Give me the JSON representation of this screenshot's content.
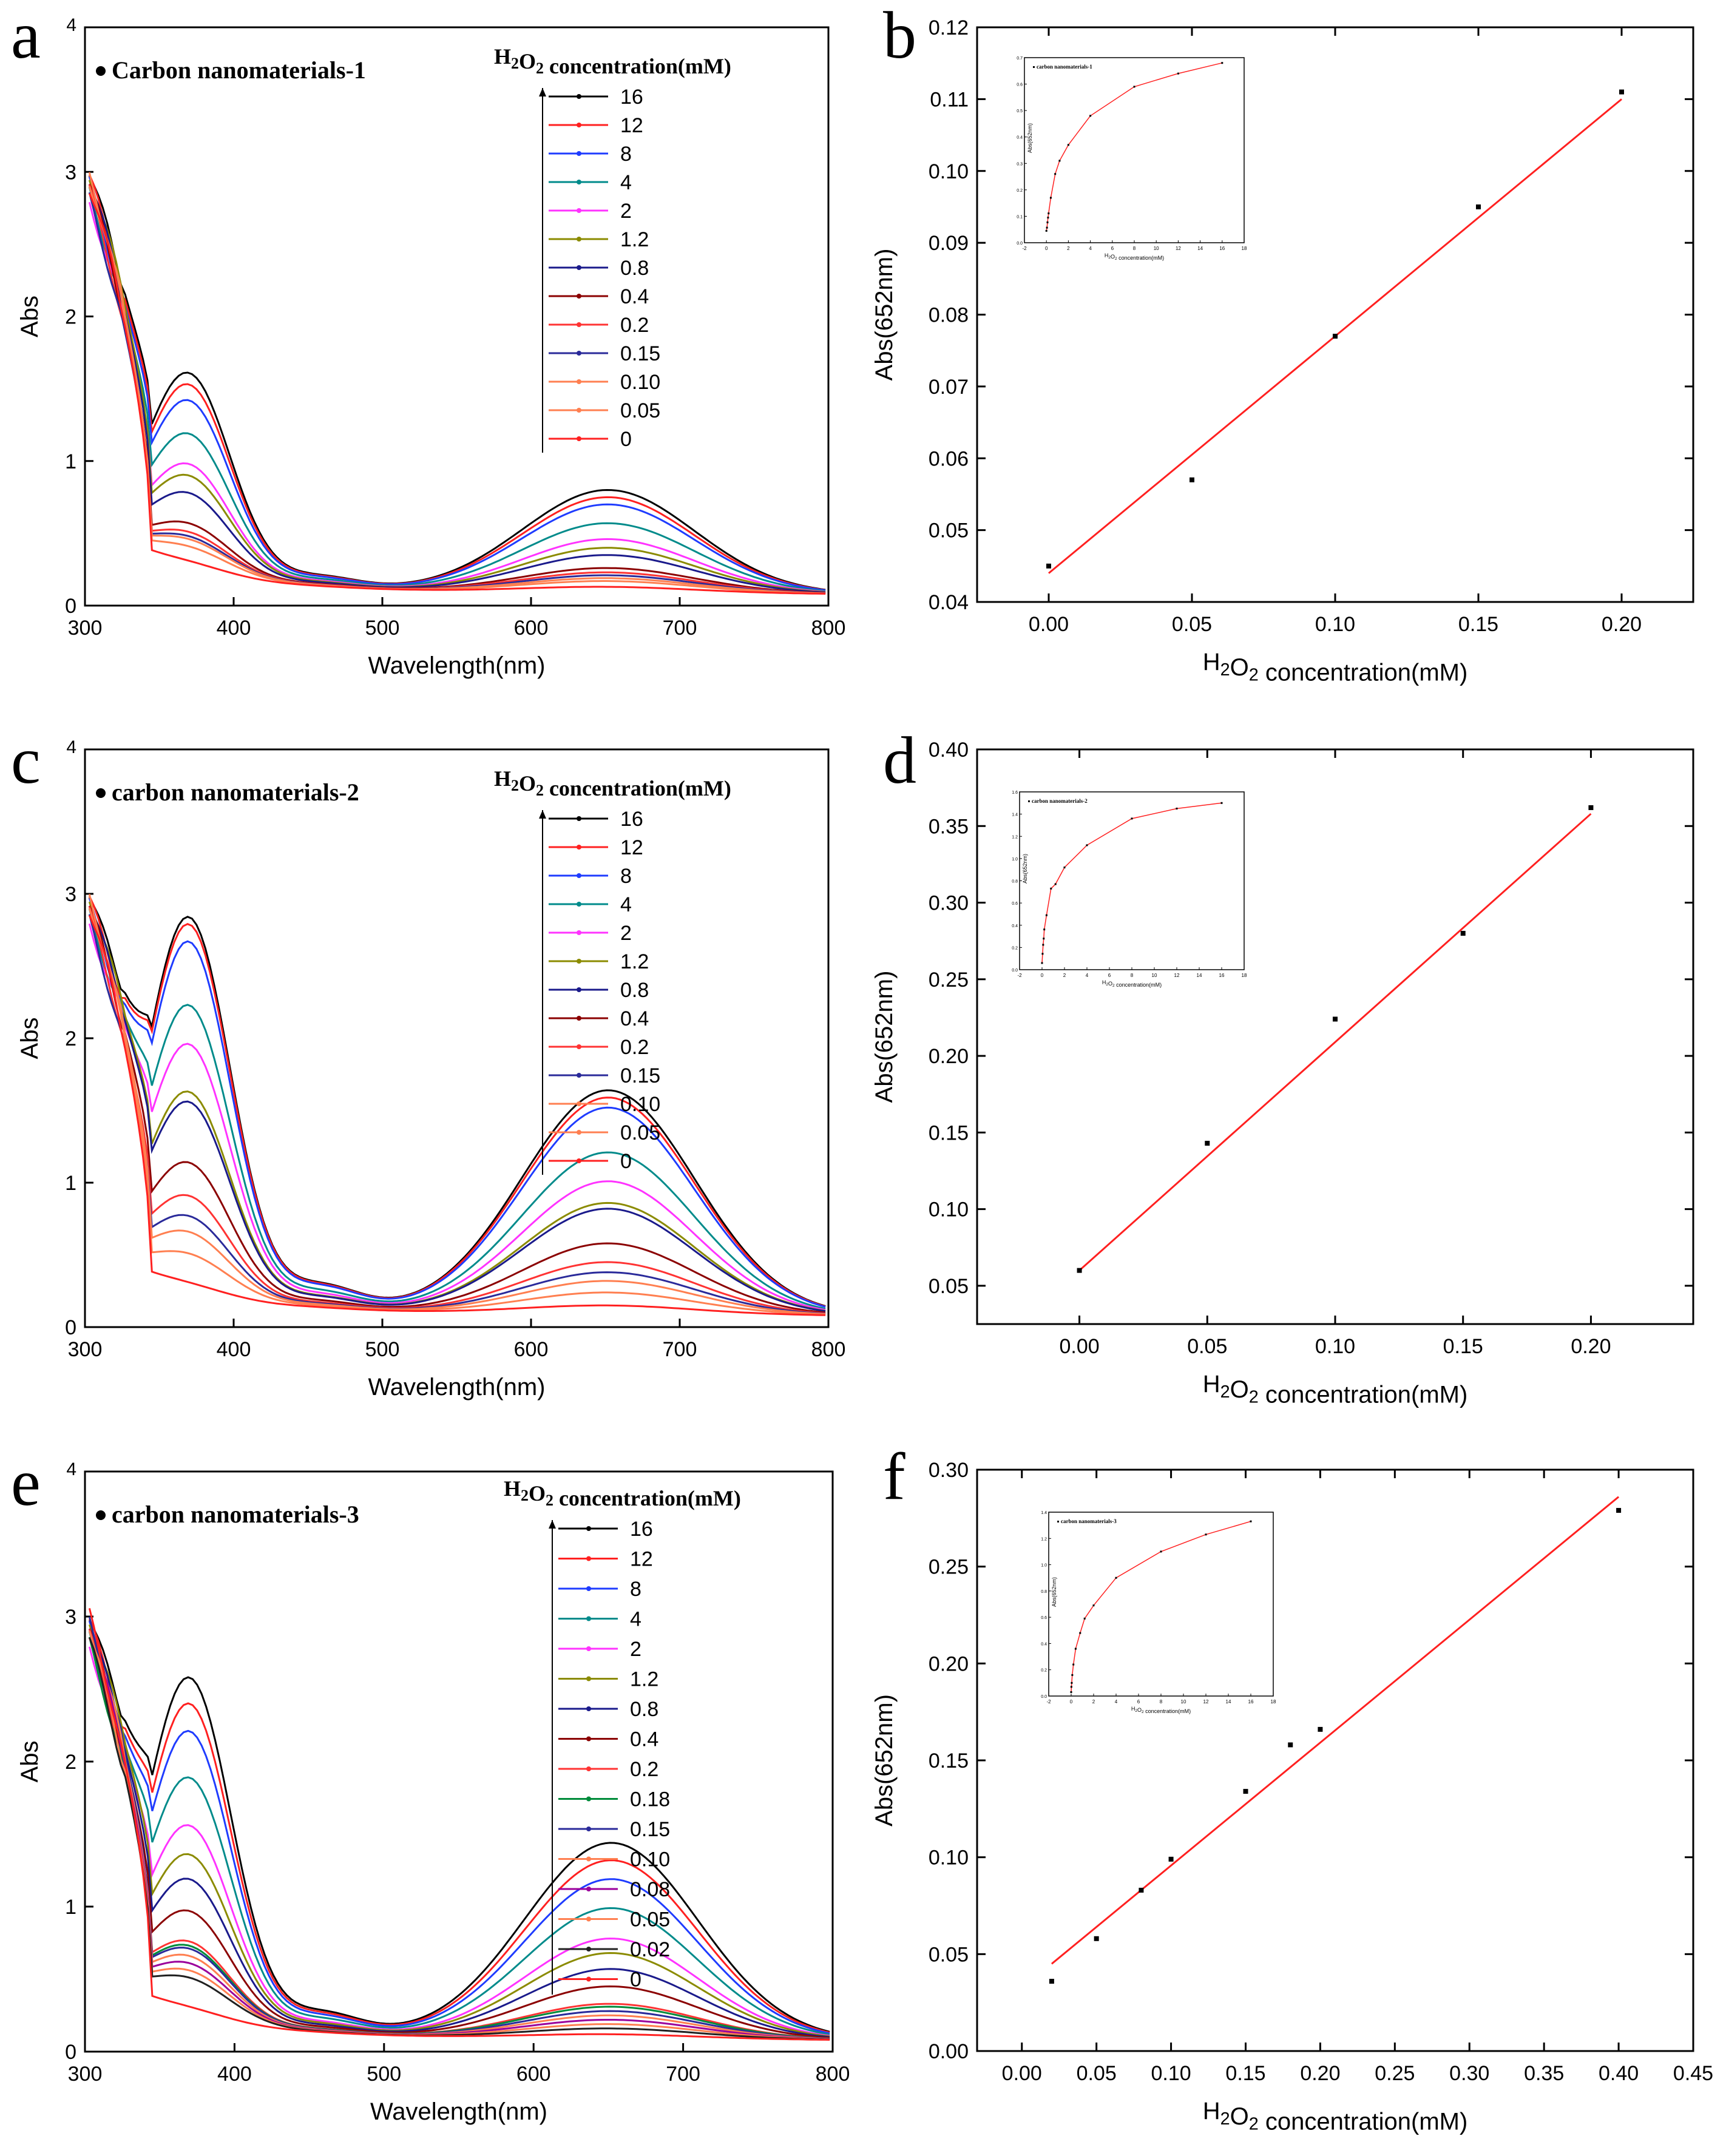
{
  "colors": {
    "16": "#000000",
    "12": "#ff2020",
    "8": "#1f3cff",
    "4": "#008b8b",
    "2": "#ff33ff",
    "1.2": "#8b8b00",
    "0.8": "#1a1a8b",
    "0.4": "#8b0000",
    "0.2": "#ff3333",
    "0.18": "#008b3a",
    "0.15": "#2a2a9a",
    "0.10": "#ff7f50",
    "0.08": "#9b009b",
    "0.05": "#ff7f50",
    "0.02": "#202020",
    "0": "#ff2020",
    "fit": "#ff2020",
    "axis": "#000000"
  },
  "chart_data": [
    {
      "panel": "a",
      "type": "line",
      "title": "Carbon nanomaterials-1",
      "xlabel": "Wavelength(nm)",
      "ylabel": "Abs",
      "xlim": [
        300,
        800
      ],
      "ylim": [
        0,
        4
      ],
      "xticks": [
        "300",
        "400",
        "500",
        "600",
        "700",
        "800"
      ],
      "yticks": [
        "0",
        "1",
        "2",
        "3",
        "4"
      ],
      "legend_title": "H2O2 concentration(mM)",
      "series": [
        {
          "name": "16",
          "peak370": 1.7,
          "peak652": 0.71
        },
        {
          "name": "12",
          "peak370": 1.62,
          "peak652": 0.66
        },
        {
          "name": "8",
          "peak370": 1.51,
          "peak652": 0.61
        },
        {
          "name": "4",
          "peak370": 1.28,
          "peak652": 0.48
        },
        {
          "name": "2",
          "peak370": 1.07,
          "peak652": 0.37
        },
        {
          "name": "1.2",
          "peak370": 0.99,
          "peak652": 0.31
        },
        {
          "name": "0.8",
          "peak370": 0.87,
          "peak652": 0.26
        },
        {
          "name": "0.4",
          "peak370": 0.66,
          "peak652": 0.17
        },
        {
          "name": "0.2",
          "peak370": 0.6,
          "peak652": 0.14
        },
        {
          "name": "0.15",
          "peak370": 0.57,
          "peak652": 0.12
        },
        {
          "name": "0.10",
          "peak370": 0.55,
          "peak652": 0.1
        },
        {
          "name": "0.05",
          "peak370": 0.5,
          "peak652": 0.08
        },
        {
          "name": "0",
          "peak370": 0.4,
          "peak652": 0.04
        }
      ]
    },
    {
      "panel": "b",
      "type": "scatter",
      "xlabel": "H2O2 concentration(mM)",
      "ylabel": "Abs(652nm)",
      "xlim": [
        -0.025,
        0.225
      ],
      "ylim": [
        0.04,
        0.12
      ],
      "xticks": [
        "0.00",
        "0.05",
        "0.10",
        "0.15",
        "0.20"
      ],
      "yticks": [
        "0.04",
        "0.05",
        "0.06",
        "0.07",
        "0.08",
        "0.09",
        "0.10",
        "0.11",
        "0.12"
      ],
      "x": [
        0.0,
        0.05,
        0.1,
        0.15,
        0.2
      ],
      "y": [
        0.045,
        0.057,
        0.077,
        0.095,
        0.111
      ],
      "fit": {
        "x": [
          0.0,
          0.2
        ],
        "y": [
          0.044,
          0.11
        ]
      },
      "inset": {
        "label": "carbon nanomaterials-1",
        "xlabel": "H2O2 concentration(mM)",
        "ylabel": "Abs(652nm)",
        "xlim": [
          -2,
          18
        ],
        "ylim": [
          0,
          0.7
        ],
        "xticks": [
          "-2",
          "0",
          "2",
          "4",
          "6",
          "8",
          "10",
          "12",
          "14",
          "16",
          "18"
        ],
        "yticks": [
          "0.0",
          "0.1",
          "0.2",
          "0.3",
          "0.4",
          "0.5",
          "0.6",
          "0.7"
        ],
        "x": [
          0,
          0.05,
          0.1,
          0.15,
          0.2,
          0.4,
          0.8,
          1.2,
          2,
          4,
          8,
          12,
          16
        ],
        "y": [
          0.045,
          0.057,
          0.077,
          0.095,
          0.111,
          0.17,
          0.26,
          0.31,
          0.37,
          0.48,
          0.59,
          0.64,
          0.68
        ]
      }
    },
    {
      "panel": "c",
      "type": "line",
      "title": "carbon nanomaterials-2",
      "xlabel": "Wavelength(nm)",
      "ylabel": "Abs",
      "xlim": [
        300,
        800
      ],
      "ylim": [
        0,
        4
      ],
      "xticks": [
        "300",
        "400",
        "500",
        "600",
        "700",
        "800"
      ],
      "yticks": [
        "0",
        "1",
        "2",
        "3",
        "4"
      ],
      "legend_title": "H2O2 concentration(mM)",
      "series": [
        {
          "name": "16",
          "peak370": 2.93,
          "peak652": 1.55
        },
        {
          "name": "12",
          "peak370": 2.88,
          "peak652": 1.5
        },
        {
          "name": "8",
          "peak370": 2.76,
          "peak652": 1.43
        },
        {
          "name": "4",
          "peak370": 2.32,
          "peak652": 1.12
        },
        {
          "name": "2",
          "peak370": 2.05,
          "peak652": 0.92
        },
        {
          "name": "1.2",
          "peak370": 1.72,
          "peak652": 0.77
        },
        {
          "name": "0.8",
          "peak370": 1.65,
          "peak652": 0.73
        },
        {
          "name": "0.4",
          "peak370": 1.23,
          "peak652": 0.49
        },
        {
          "name": "0.2",
          "peak370": 1.0,
          "peak652": 0.36
        },
        {
          "name": "0.15",
          "peak370": 0.86,
          "peak652": 0.29
        },
        {
          "name": "0.10",
          "peak370": 0.75,
          "peak652": 0.23
        },
        {
          "name": "0.05",
          "peak370": 0.6,
          "peak652": 0.15
        },
        {
          "name": "0",
          "peak370": 0.4,
          "peak652": 0.06
        }
      ]
    },
    {
      "panel": "d",
      "type": "scatter",
      "xlabel": "H2O2 concentration(mM)",
      "ylabel": "Abs(652nm)",
      "xlim": [
        -0.04,
        0.24
      ],
      "ylim": [
        0.025,
        0.4
      ],
      "xticks": [
        "0.00",
        "0.05",
        "0.10",
        "0.15",
        "0.20"
      ],
      "yticks": [
        "0.05",
        "0.10",
        "0.15",
        "0.20",
        "0.25",
        "0.30",
        "0.35",
        "0.40"
      ],
      "x": [
        0.0,
        0.05,
        0.1,
        0.15,
        0.2
      ],
      "y": [
        0.06,
        0.143,
        0.224,
        0.28,
        0.362
      ],
      "fit": {
        "x": [
          0.0,
          0.2
        ],
        "y": [
          0.06,
          0.358
        ]
      },
      "inset": {
        "label": "carbon nanomaterials-2",
        "xlabel": "H2O2 concentration(mM)",
        "ylabel": "Abs(652nm)",
        "xlim": [
          -2,
          18
        ],
        "ylim": [
          0,
          1.6
        ],
        "xticks": [
          "-2",
          "0",
          "2",
          "4",
          "6",
          "8",
          "10",
          "12",
          "14",
          "16",
          "18"
        ],
        "yticks": [
          "0.0",
          "0.2",
          "0.4",
          "0.6",
          "0.8",
          "1.0",
          "1.2",
          "1.4",
          "1.6"
        ],
        "x": [
          0,
          0.05,
          0.1,
          0.15,
          0.2,
          0.4,
          0.8,
          1.2,
          2,
          4,
          8,
          12,
          16
        ],
        "y": [
          0.06,
          0.143,
          0.224,
          0.28,
          0.362,
          0.49,
          0.73,
          0.77,
          0.92,
          1.12,
          1.36,
          1.45,
          1.5
        ]
      }
    },
    {
      "panel": "e",
      "type": "line",
      "title": "carbon nanomaterials-3",
      "xlabel": "Wavelength(nm)",
      "ylabel": "Abs",
      "xlim": [
        300,
        800
      ],
      "ylim": [
        0,
        4
      ],
      "xticks": [
        "300",
        "400",
        "500",
        "600",
        "700",
        "800"
      ],
      "yticks": [
        "0",
        "1",
        "2",
        "3",
        "4"
      ],
      "legend_title": "H2O2 concentration(mM)",
      "series": [
        {
          "name": "16",
          "peak370": 2.67,
          "peak652": 1.35
        },
        {
          "name": "12",
          "peak370": 2.49,
          "peak652": 1.23
        },
        {
          "name": "8",
          "peak370": 2.3,
          "peak652": 1.1
        },
        {
          "name": "4",
          "peak370": 1.98,
          "peak652": 0.9
        },
        {
          "name": "2",
          "peak370": 1.65,
          "peak652": 0.69
        },
        {
          "name": "1.2",
          "peak370": 1.45,
          "peak652": 0.59
        },
        {
          "name": "0.8",
          "peak370": 1.28,
          "peak652": 0.48
        },
        {
          "name": "0.4",
          "peak370": 1.06,
          "peak652": 0.36
        },
        {
          "name": "0.2",
          "peak370": 0.85,
          "peak652": 0.24
        },
        {
          "name": "0.18",
          "peak370": 0.82,
          "peak652": 0.22
        },
        {
          "name": "0.15",
          "peak370": 0.8,
          "peak652": 0.19
        },
        {
          "name": "0.10",
          "peak370": 0.75,
          "peak652": 0.16
        },
        {
          "name": "0.08",
          "peak370": 0.7,
          "peak652": 0.13
        },
        {
          "name": "0.05",
          "peak370": 0.65,
          "peak652": 0.1
        },
        {
          "name": "0.02",
          "peak370": 0.6,
          "peak652": 0.07
        },
        {
          "name": "0",
          "peak370": 0.4,
          "peak652": 0.03
        }
      ]
    },
    {
      "panel": "f",
      "type": "scatter",
      "xlabel": "H2O2 concentration(mM)",
      "ylabel": "Abs(652nm)",
      "xlim": [
        -0.03,
        0.45
      ],
      "ylim": [
        0.0,
        0.3
      ],
      "xticks": [
        "0.00",
        "0.05",
        "0.10",
        "0.15",
        "0.20",
        "0.25",
        "0.30",
        "0.35",
        "0.40",
        "0.45"
      ],
      "yticks": [
        "0.00",
        "0.05",
        "0.10",
        "0.15",
        "0.20",
        "0.25",
        "0.30"
      ],
      "x": [
        0.02,
        0.05,
        0.08,
        0.1,
        0.15,
        0.18,
        0.2,
        0.4
      ],
      "y": [
        0.036,
        0.058,
        0.083,
        0.099,
        0.134,
        0.158,
        0.166,
        0.279
      ],
      "fit": {
        "x": [
          0.02,
          0.4
        ],
        "y": [
          0.045,
          0.286
        ]
      },
      "inset": {
        "label": "carbon nanomaterials-3",
        "xlabel": "H2O2 concentration(mM)",
        "ylabel": "Abs(652nm)",
        "xlim": [
          -2,
          18
        ],
        "ylim": [
          0,
          1.4
        ],
        "xticks": [
          "-2",
          "0",
          "2",
          "4",
          "6",
          "8",
          "10",
          "12",
          "14",
          "16",
          "18"
        ],
        "yticks": [
          "0.0",
          "0.2",
          "0.4",
          "0.6",
          "0.8",
          "1.0",
          "1.2",
          "1.4"
        ],
        "x": [
          0,
          0.02,
          0.05,
          0.1,
          0.2,
          0.4,
          0.8,
          1.2,
          2,
          4,
          8,
          12,
          16
        ],
        "y": [
          0.03,
          0.07,
          0.1,
          0.16,
          0.24,
          0.36,
          0.48,
          0.59,
          0.69,
          0.9,
          1.1,
          1.23,
          1.33
        ]
      }
    }
  ]
}
